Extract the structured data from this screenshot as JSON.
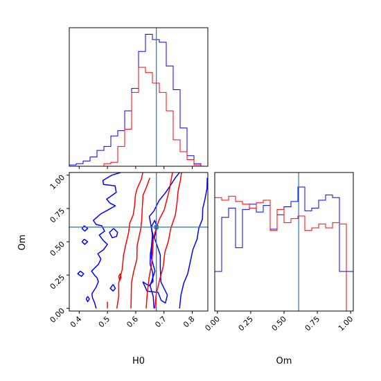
{
  "chart_data": {
    "type": "corner",
    "parameters": [
      "H0",
      "Om"
    ],
    "truth": {
      "H0": 0.673,
      "Om": 0.61
    },
    "series_colors": [
      "#0000ff",
      "#ff0000"
    ],
    "truth_color": "#1f77b4",
    "panels": [
      {
        "id": "hist-H0",
        "type": "histogram",
        "xlim": [
          0.365,
          0.855
        ],
        "ylim": [
          0,
          1.05
        ],
        "x_ticks": [
          0.4,
          0.5,
          0.6,
          0.7,
          0.8
        ],
        "bin_edges": [
          0.365,
          0.3895,
          0.414,
          0.4385,
          0.463,
          0.4875,
          0.512,
          0.5365,
          0.561,
          0.5855,
          0.61,
          0.6345,
          0.659,
          0.6835,
          0.708,
          0.7325,
          0.757,
          0.7815,
          0.806,
          0.8305,
          0.855
        ],
        "series": [
          {
            "color": "#0000ff",
            "values": [
              0.01,
              0.02,
              0.04,
              0.07,
              0.12,
              0.15,
              0.23,
              0.27,
              0.42,
              0.59,
              0.87,
              1.0,
              0.96,
              0.94,
              0.76,
              0.58,
              0.29,
              0.08,
              0.02,
              0.0
            ]
          },
          {
            "color": "#ff0000",
            "values": [
              0.0,
              0.0,
              0.0,
              0.0,
              0.0,
              0.02,
              0.03,
              0.15,
              0.28,
              0.56,
              0.75,
              0.71,
              0.63,
              0.56,
              0.42,
              0.2,
              0.11,
              0.05,
              0.01,
              0.0
            ]
          }
        ]
      },
      {
        "id": "hist-Om",
        "type": "histogram",
        "xlabel": "Om",
        "xlim": [
          -0.02,
          1.02
        ],
        "ylim": [
          0,
          1.05
        ],
        "x_ticks": [
          "0.00",
          "0.25",
          "0.50",
          "0.75",
          "1.00"
        ],
        "x_tick_values": [
          0.0,
          0.25,
          0.5,
          0.75,
          1.0
        ],
        "bin_edges": [
          -0.02,
          0.032,
          0.084,
          0.136,
          0.188,
          0.24,
          0.292,
          0.344,
          0.396,
          0.448,
          0.5,
          0.552,
          0.604,
          0.656,
          0.708,
          0.76,
          0.812,
          0.864,
          0.916,
          0.968,
          1.02
        ],
        "series": [
          {
            "color": "#0000ff",
            "values": [
              0.3,
              0.71,
              0.78,
              0.48,
              0.77,
              0.81,
              0.75,
              0.8,
              0.62,
              0.73,
              0.79,
              0.83,
              0.94,
              0.76,
              0.78,
              0.84,
              0.88,
              0.86,
              0.3,
              0.3
            ]
          },
          {
            "color": "#ff0000",
            "values": [
              0.86,
              0.84,
              0.87,
              0.83,
              0.81,
              0.78,
              0.82,
              0.84,
              0.61,
              0.77,
              0.67,
              0.7,
              0.72,
              0.61,
              0.63,
              0.66,
              0.63,
              0.67,
              0.66,
              0.0
            ]
          }
        ]
      },
      {
        "id": "contour-H0-Om",
        "type": "contour",
        "xlabel": "H0",
        "ylabel": "Om",
        "xlim": [
          0.365,
          0.855
        ],
        "ylim": [
          -0.02,
          1.02
        ],
        "x_ticks": [
          0.4,
          0.5,
          0.6,
          0.7,
          0.8
        ],
        "y_ticks": [
          "0.00",
          "0.25",
          "0.50",
          "0.75",
          "1.00"
        ],
        "y_tick_values": [
          0.0,
          0.25,
          0.5,
          0.75,
          1.0
        ],
        "contours": [
          {
            "color": "#0000ff",
            "points": [
              [
                0.547,
                1.02
              ],
              [
                0.516,
                1.0
              ],
              [
                0.484,
                0.96
              ],
              [
                0.486,
                0.93
              ],
              [
                0.527,
                0.92
              ],
              [
                0.531,
                0.87
              ],
              [
                0.497,
                0.82
              ],
              [
                0.509,
                0.79
              ],
              [
                0.528,
                0.77
              ],
              [
                0.503,
                0.74
              ],
              [
                0.477,
                0.71
              ],
              [
                0.45,
                0.66
              ],
              [
                0.46,
                0.63
              ],
              [
                0.48,
                0.62
              ],
              [
                0.49,
                0.58
              ],
              [
                0.471,
                0.55
              ],
              [
                0.485,
                0.51
              ],
              [
                0.5,
                0.48
              ],
              [
                0.486,
                0.44
              ],
              [
                0.466,
                0.41
              ],
              [
                0.477,
                0.37
              ],
              [
                0.468,
                0.33
              ],
              [
                0.444,
                0.28
              ],
              [
                0.454,
                0.25
              ],
              [
                0.463,
                0.23
              ],
              [
                0.468,
                0.2
              ],
              [
                0.46,
                0.16
              ],
              [
                0.445,
                0.11
              ],
              [
                0.447,
                0.08
              ],
              [
                0.455,
                0.04
              ],
              [
                0.46,
                0.0
              ]
            ]
          },
          {
            "color": "#0000ff",
            "points": [
              [
                0.522,
                0.6
              ],
              [
                0.536,
                0.57
              ],
              [
                0.532,
                0.54
              ],
              [
                0.517,
                0.53
              ],
              [
                0.507,
                0.57
              ],
              [
                0.522,
                0.6
              ]
            ]
          },
          {
            "color": "#0000ff",
            "points": [
              [
                0.418,
                0.62
              ],
              [
                0.43,
                0.6
              ],
              [
                0.42,
                0.58
              ],
              [
                0.41,
                0.6
              ],
              [
                0.418,
                0.62
              ]
            ]
          },
          {
            "color": "#0000ff",
            "points": [
              [
                0.418,
                0.52
              ],
              [
                0.43,
                0.5
              ],
              [
                0.42,
                0.48
              ],
              [
                0.41,
                0.5
              ],
              [
                0.418,
                0.52
              ]
            ]
          },
          {
            "color": "#0000ff",
            "points": [
              [
                0.404,
                0.28
              ],
              [
                0.416,
                0.26
              ],
              [
                0.408,
                0.24
              ],
              [
                0.395,
                0.26
              ],
              [
                0.404,
                0.28
              ]
            ]
          },
          {
            "color": "#0000ff",
            "points": [
              [
                0.52,
                0.18
              ],
              [
                0.528,
                0.15
              ],
              [
                0.52,
                0.13
              ],
              [
                0.51,
                0.15
              ],
              [
                0.52,
                0.18
              ]
            ]
          },
          {
            "color": "#0000ff",
            "points": [
              [
                0.43,
                0.09
              ],
              [
                0.436,
                0.07
              ],
              [
                0.43,
                0.05
              ],
              [
                0.425,
                0.07
              ],
              [
                0.43,
                0.09
              ]
            ]
          },
          {
            "color": "#0000ff",
            "points": [
              [
                0.665,
                0.0
              ],
              [
                0.662,
                0.09
              ],
              [
                0.651,
                0.17
              ],
              [
                0.668,
                0.28
              ],
              [
                0.655,
                0.38
              ],
              [
                0.657,
                0.47
              ],
              [
                0.662,
                0.54
              ],
              [
                0.655,
                0.61
              ],
              [
                0.648,
                0.69
              ],
              [
                0.664,
                0.73
              ],
              [
                0.683,
                0.81
              ],
              [
                0.706,
                0.87
              ],
              [
                0.725,
                0.93
              ],
              [
                0.74,
                0.98
              ],
              [
                0.755,
                1.02
              ]
            ]
          },
          {
            "color": "#0000ff",
            "points": [
              [
                0.755,
                0.0
              ],
              [
                0.76,
                0.1
              ],
              [
                0.77,
                0.19
              ],
              [
                0.784,
                0.26
              ],
              [
                0.793,
                0.35
              ],
              [
                0.802,
                0.44
              ],
              [
                0.817,
                0.52
              ],
              [
                0.823,
                0.6
              ],
              [
                0.836,
                0.67
              ],
              [
                0.837,
                0.75
              ],
              [
                0.845,
                0.82
              ],
              [
                0.852,
                0.9
              ],
              [
                0.853,
                0.98
              ]
            ]
          },
          {
            "color": "#0000ff",
            "points": [
              [
                0.625,
                0.2
              ],
              [
                0.646,
                0.17
              ],
              [
                0.661,
                0.2
              ],
              [
                0.66,
                0.27
              ],
              [
                0.651,
                0.33
              ],
              [
                0.652,
                0.41
              ],
              [
                0.656,
                0.47
              ],
              [
                0.659,
                0.55
              ],
              [
                0.655,
                0.61
              ],
              [
                0.667,
                0.66
              ],
              [
                0.676,
                0.61
              ],
              [
                0.666,
                0.53
              ],
              [
                0.676,
                0.47
              ],
              [
                0.687,
                0.4
              ],
              [
                0.687,
                0.31
              ],
              [
                0.689,
                0.2
              ],
              [
                0.712,
                0.1
              ],
              [
                0.705,
                0.04
              ],
              [
                0.69,
                0.06
              ],
              [
                0.679,
                0.12
              ],
              [
                0.64,
                0.13
              ],
              [
                0.625,
                0.2
              ]
            ]
          },
          {
            "color": "#ff0000",
            "points": [
              [
                0.5,
                0.05
              ],
              [
                0.5,
                0.0
              ]
            ]
          },
          {
            "color": "#ff0000",
            "points": [
              [
                0.54,
                0.24
              ],
              [
                0.545,
                0.26
              ],
              [
                0.548,
                0.23
              ],
              [
                0.543,
                0.21
              ],
              [
                0.54,
                0.24
              ]
            ]
          },
          {
            "color": "#ff0000",
            "points": [
              [
                0.533,
                0.0
              ],
              [
                0.54,
                0.09
              ],
              [
                0.54,
                0.19
              ],
              [
                0.552,
                0.29
              ],
              [
                0.557,
                0.4
              ],
              [
                0.563,
                0.46
              ],
              [
                0.575,
                0.57
              ],
              [
                0.579,
                0.64
              ],
              [
                0.591,
                0.7
              ],
              [
                0.596,
                0.77
              ],
              [
                0.599,
                0.85
              ],
              [
                0.605,
                0.9
              ],
              [
                0.62,
                0.97
              ],
              [
                0.625,
                1.02
              ]
            ]
          },
          {
            "color": "#ff0000",
            "points": [
              [
                0.583,
                0.0
              ],
              [
                0.584,
                0.09
              ],
              [
                0.585,
                0.19
              ],
              [
                0.592,
                0.27
              ],
              [
                0.604,
                0.37
              ],
              [
                0.605,
                0.47
              ],
              [
                0.611,
                0.53
              ],
              [
                0.618,
                0.6
              ],
              [
                0.621,
                0.66
              ],
              [
                0.623,
                0.75
              ],
              [
                0.626,
                0.85
              ],
              [
                0.638,
                0.91
              ],
              [
                0.65,
                0.98
              ]
            ]
          },
          {
            "color": "#ff0000",
            "points": [
              [
                0.637,
                0.0
              ],
              [
                0.641,
                0.12
              ],
              [
                0.648,
                0.24
              ],
              [
                0.656,
                0.33
              ],
              [
                0.66,
                0.42
              ],
              [
                0.662,
                0.52
              ],
              [
                0.672,
                0.6
              ],
              [
                0.684,
                0.67
              ],
              [
                0.701,
                0.74
              ],
              [
                0.712,
                0.83
              ],
              [
                0.72,
                0.9
              ],
              [
                0.725,
                0.96
              ],
              [
                0.73,
                1.02
              ]
            ]
          },
          {
            "color": "#ff0000",
            "points": [
              [
                0.668,
                0.0
              ],
              [
                0.672,
                0.1
              ],
              [
                0.684,
                0.21
              ],
              [
                0.697,
                0.31
              ],
              [
                0.703,
                0.42
              ],
              [
                0.716,
                0.51
              ],
              [
                0.724,
                0.6
              ],
              [
                0.74,
                0.7
              ],
              [
                0.746,
                0.79
              ],
              [
                0.75,
                0.88
              ],
              [
                0.758,
                0.96
              ],
              [
                0.762,
                1.02
              ]
            ]
          }
        ]
      }
    ]
  }
}
